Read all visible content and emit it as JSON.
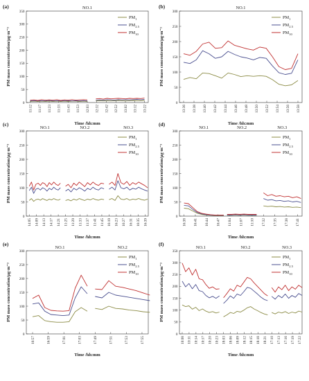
{
  "figure": {
    "colors": {
      "PM1": "#8b8b45",
      "PM2.5": "#4a4f8f",
      "PM10": "#c03030",
      "axis": "#333333"
    },
    "series_names": [
      "PM1",
      "PM2.5",
      "PM10"
    ],
    "units": "μg·m⁻³"
  },
  "chart_data": [
    {
      "id": "a",
      "panel_label": "(a)",
      "type": "line",
      "segment_labels": [
        "NO.1"
      ],
      "ylabel": "PM mass concentration/μg·m⁻³",
      "xlabel": "Time /hh:mm",
      "ylim": [
        0,
        350
      ],
      "yticks": [
        0,
        50,
        100,
        150,
        200,
        250,
        300,
        350
      ],
      "xticks": [
        "11:12",
        "11:17",
        "11:23",
        "11:33",
        "11:43",
        "11:53",
        "12:03",
        "12:32",
        "12:42",
        "12:52",
        "13:02",
        "13:12",
        "13:22"
      ],
      "segments": [
        {
          "x_start": 0,
          "x_end": 6,
          "series": {
            "PM1": [
              4,
              5,
              4,
              5,
              4,
              5,
              4,
              5,
              4,
              5,
              4,
              5,
              5,
              4,
              5,
              4
            ],
            "PM2.5": [
              6,
              7,
              6,
              7,
              6,
              8,
              6,
              7,
              6,
              7,
              7,
              6,
              7,
              6,
              7,
              6
            ],
            "PM10": [
              9,
              10,
              8,
              11,
              9,
              10,
              9,
              11,
              8,
              10,
              9,
              11,
              9,
              10,
              11,
              10
            ]
          }
        },
        {
          "x_start": 6.9,
          "x_end": 12,
          "series": {
            "PM1": [
              6,
              7,
              6,
              7,
              6,
              7,
              8,
              7,
              6,
              7,
              8,
              7,
              7,
              8
            ],
            "PM2.5": [
              9,
              10,
              9,
              11,
              10,
              9,
              11,
              10,
              11,
              10,
              11,
              12,
              11,
              12
            ],
            "PM10": [
              14,
              15,
              13,
              16,
              14,
              15,
              16,
              15,
              14,
              16,
              15,
              16,
              15,
              17
            ]
          }
        }
      ],
      "legend": [
        "PM1",
        "PM2.5",
        "PM10"
      ]
    },
    {
      "id": "b",
      "panel_label": "(b)",
      "type": "line",
      "segment_labels": [
        "NO.1"
      ],
      "ylabel": "PM mass concentration/μg·m⁻³",
      "xlabel": "Time /hh:mm",
      "ylim": [
        0,
        300
      ],
      "yticks": [
        0,
        50,
        100,
        150,
        200,
        250,
        300
      ],
      "xticks": [
        "13:36",
        "13:38",
        "13:40",
        "13:42",
        "13:44",
        "13:46",
        "13:48",
        "13:50",
        "13:52",
        "13:54",
        "13:56",
        "13:58"
      ],
      "segments": [
        {
          "x_start": 0,
          "x_end": 11,
          "series": {
            "PM1": [
              76,
              82,
              78,
              97,
              95,
              88,
              80,
              97,
              92,
              85,
              88,
              86,
              88,
              86,
              75,
              60,
              55,
              58,
              72
            ],
            "PM2.5": [
              132,
              128,
              140,
              170,
              160,
              145,
              150,
              168,
              158,
              150,
              146,
              140,
              148,
              145,
              120,
              98,
              92,
              96,
              140
            ],
            "PM10": [
              160,
              155,
              168,
              192,
              198,
              178,
              180,
              202,
              188,
              182,
              176,
              172,
              182,
              178,
              150,
              118,
              108,
              112,
              160
            ]
          }
        }
      ],
      "legend": [
        "PM1",
        "PM2.5",
        "PM10"
      ]
    },
    {
      "id": "c",
      "panel_label": "(c)",
      "type": "line",
      "segment_labels": [
        "NO.1",
        "NO.2",
        "NO.3"
      ],
      "ylabel": "PM mass concentration/μg·m⁻³",
      "xlabel": "Time /hh:mm",
      "ylim": [
        0,
        300
      ],
      "yticks": [
        0,
        50,
        100,
        150,
        200,
        250,
        300
      ],
      "xticks": [
        "14:05",
        "14:09",
        "14:13",
        "14:17",
        "14:21",
        "11:25",
        "11:29",
        "11:33",
        "11:37",
        "11:41",
        "11:45",
        "16:19",
        "16:23",
        "16:27",
        "16:31",
        "16:35",
        "16:39"
      ],
      "segments": [
        {
          "x_start": 0,
          "x_end": 4.3,
          "series": {
            "PM1": [
              55,
              62,
              52,
              58,
              60,
              56,
              62,
              58,
              55,
              60,
              57,
              62,
              58,
              56,
              60
            ],
            "PM2.5": [
              90,
              102,
              80,
              95,
              98,
              92,
              100,
              96,
              88,
              98,
              93,
              102,
              95,
              92,
              100
            ],
            "PM10": [
              105,
              120,
              92,
              112,
              116,
              108,
              118,
              114,
              104,
              118,
              110,
              120,
              112,
              108,
              116
            ]
          }
        },
        {
          "x_start": 5,
          "x_end": 10.3,
          "series": {
            "PM1": [
              55,
              58,
              54,
              60,
              56,
              62,
              58,
              55,
              60,
              57,
              62,
              58,
              56,
              60,
              58
            ],
            "PM2.5": [
              88,
              95,
              85,
              98,
              92,
              100,
              95,
              88,
              98,
              93,
              102,
              95,
              92,
              100,
              96
            ],
            "PM10": [
              105,
              112,
              100,
              116,
              108,
              120,
              112,
              104,
              118,
              110,
              120,
              112,
              108,
              116,
              114
            ]
          }
        },
        {
          "x_start": 11,
          "x_end": 16.3,
          "series": {
            "PM1": [
              58,
              62,
              55,
              72,
              60,
              58,
              62,
              56,
              60,
              58,
              62,
              58,
              56,
              60
            ],
            "PM2.5": [
              95,
              102,
              92,
              125,
              100,
              96,
              102,
              92,
              98,
              95,
              102,
              96,
              92,
              88
            ],
            "PM10": [
              112,
              120,
              108,
              150,
              118,
              112,
              122,
              108,
              118,
              112,
              120,
              114,
              108,
              100
            ]
          }
        }
      ],
      "legend": [
        "PM1",
        "PM2.5",
        "PM10"
      ]
    },
    {
      "id": "d",
      "panel_label": "(d)",
      "type": "line",
      "segment_labels": [
        "NO.1",
        "NO.2",
        "NO.3"
      ],
      "ylabel": "PM mass concentration/μg·m⁻³",
      "xlabel": "Time /hh:mm",
      "ylim": [
        0,
        300
      ],
      "yticks": [
        0,
        50,
        100,
        150,
        200,
        250,
        300
      ],
      "xticks": [
        "16:38",
        "16:41",
        "16:44",
        "16:47",
        "11:04",
        "11:07",
        "11:10",
        "17:32",
        "17:35",
        "17:38",
        "17:41"
      ],
      "segments": [
        {
          "x_start": 0,
          "x_end": 3.5,
          "series": {
            "PM1": [
              28,
              26,
              18,
              10,
              6,
              4,
              3,
              2,
              2,
              2
            ],
            "PM2.5": [
              38,
              36,
              24,
              13,
              8,
              5,
              4,
              3,
              3,
              3
            ],
            "PM10": [
              46,
              44,
              30,
              16,
              10,
              7,
              5,
              4,
              4,
              4
            ]
          }
        },
        {
          "x_start": 3.8,
          "x_end": 6.4,
          "series": {
            "PM1": [
              3,
              3,
              4,
              3,
              4,
              3,
              3,
              3
            ],
            "PM2.5": [
              4,
              4,
              5,
              4,
              5,
              4,
              4,
              4
            ],
            "PM10": [
              6,
              6,
              7,
              6,
              7,
              6,
              6,
              6
            ]
          }
        },
        {
          "x_start": 7,
          "x_end": 10.3,
          "series": {
            "PM1": [
              36,
              34,
              35,
              33,
              34,
              32,
              33,
              31,
              32,
              30
            ],
            "PM2.5": [
              62,
              56,
              58,
              54,
              55,
              52,
              54,
              50,
              52,
              48
            ],
            "PM10": [
              82,
              72,
              76,
              70,
              72,
              68,
              70,
              65,
              68,
              62
            ]
          }
        }
      ],
      "legend": [
        "PM1",
        "PM2.5",
        "PM10"
      ]
    },
    {
      "id": "e",
      "panel_label": "(e)",
      "type": "line",
      "segment_labels": [
        "NO.1",
        "NO.2"
      ],
      "ylabel": "PM mass concentration/μg·m⁻³",
      "xlabel": "Time /hh:mm",
      "ylim": [
        0,
        300
      ],
      "yticks": [
        0,
        50,
        100,
        150,
        200,
        250,
        300
      ],
      "xticks": [
        "16:57",
        "16:59",
        "17:01",
        "17:03",
        "17:49",
        "17:51",
        "17:53",
        "17:55"
      ],
      "segments": [
        {
          "x_start": 0,
          "x_end": 3.5,
          "series": {
            "PM1": [
              62,
              66,
              48,
              44,
              42,
              42,
              44,
              80,
              95,
              82
            ],
            "PM2.5": [
              108,
              112,
              82,
              70,
              68,
              66,
              68,
              130,
              170,
              145
            ],
            "PM10": [
              128,
              140,
              95,
              85,
              83,
              82,
              84,
              165,
              212,
              172
            ]
          }
        },
        {
          "x_start": 4,
          "x_end": 7.5,
          "series": {
            "PM1": [
              92,
              88,
              100,
              92,
              90,
              86,
              84,
              80,
              78
            ],
            "PM2.5": [
              135,
              130,
              150,
              140,
              136,
              132,
              128,
              124,
              120
            ],
            "PM10": [
              162,
              160,
              192,
              172,
              168,
              162,
              156,
              148,
              140
            ]
          }
        }
      ],
      "legend": [
        "PM1",
        "PM2.5",
        "PM10"
      ]
    },
    {
      "id": "f",
      "panel_label": "(f)",
      "type": "line",
      "segment_labels": [
        "NO.1",
        "NO.2",
        "NO.3"
      ],
      "ylabel": "PM mass concentration/μg·m⁻³",
      "xlabel": "Time /hh:mm",
      "ylim": [
        0,
        350
      ],
      "yticks": [
        0,
        50,
        100,
        150,
        200,
        250,
        300,
        350
      ],
      "xticks": [
        "10:08",
        "10:11",
        "10:14",
        "10:17",
        "10:20",
        "10:23",
        "18:03",
        "18:06",
        "18:09",
        "18:12",
        "18:15",
        "18:18",
        "18:21",
        "17:10",
        "17:13",
        "17:16",
        "17:19",
        "17:22"
      ],
      "segments": [
        {
          "x_start": 0,
          "x_end": 5.4,
          "series": {
            "PM1": [
              122,
              115,
              118,
              104,
              112,
              98,
              105,
              96,
              90,
              94,
              88,
              92
            ],
            "PM2.5": [
              222,
              198,
              212,
              190,
              208,
              182,
              178,
              162,
              152,
              158,
              150,
              160
            ],
            "PM10": [
              298,
              262,
              278,
              248,
              272,
              232,
              228,
              208,
              192,
              198,
              188,
              190
            ]
          }
        },
        {
          "x_start": 6,
          "x_end": 12.4,
          "series": {
            "PM1": [
              72,
              80,
              90,
              86,
              95,
              92,
              100,
              110,
              115,
              105,
              98,
              90,
              84,
              80
            ],
            "PM2.5": [
              128,
              142,
              160,
              150,
              168,
              162,
              178,
              196,
              192,
              180,
              168,
              155,
              145,
              140
            ],
            "PM10": [
              152,
              170,
              190,
              180,
              205,
              198,
              218,
              238,
              232,
              215,
              200,
              185,
              170,
              160
            ]
          }
        },
        {
          "x_start": 13,
          "x_end": 17.4,
          "series": {
            "PM1": [
              90,
              84,
              92,
              88,
              94,
              86,
              92,
              88,
              96,
              92
            ],
            "PM2.5": [
              158,
              146,
              162,
              152,
              168,
              150,
              162,
              154,
              170,
              162
            ],
            "PM10": [
              195,
              176,
              198,
              186,
              205,
              182,
              198,
              188,
              205,
              195
            ]
          }
        }
      ],
      "legend": [
        "PM1",
        "PM2.5",
        "PM10"
      ]
    }
  ]
}
